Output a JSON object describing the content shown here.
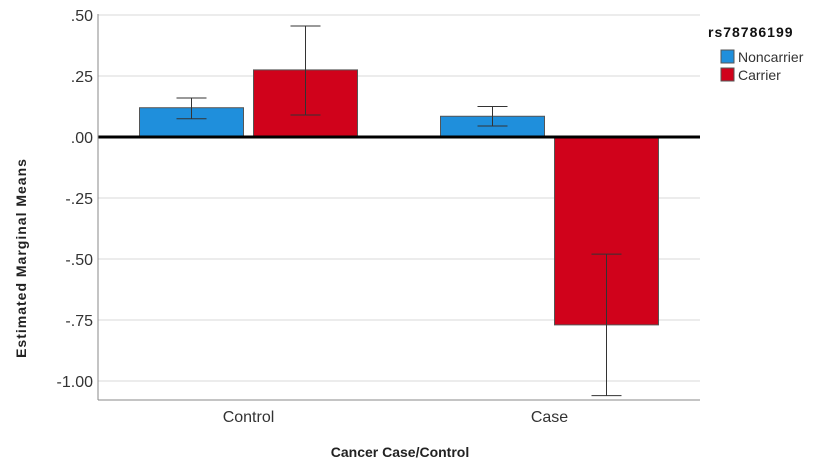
{
  "chart_data": {
    "type": "bar",
    "xlabel": "Cancer Case/Control",
    "ylabel": "Estimated Marginal Means",
    "categories": [
      "Control",
      "Case"
    ],
    "ylim": [
      -1.05,
      0.5
    ],
    "yticks": [
      0.5,
      0.25,
      0.0,
      -0.25,
      -0.5,
      -0.75,
      -1.0
    ],
    "ytick_labels": [
      ".50",
      ".25",
      ".00",
      "-.25",
      "-.50",
      "-.75",
      "-1.00"
    ],
    "grid": "horizontal",
    "legend": {
      "title": "rs78786199",
      "placement": "top-right outside"
    },
    "series": [
      {
        "name": "Noncarrier",
        "color": "#1f8fdc",
        "values": [
          0.12,
          0.085
        ],
        "error_low": [
          0.075,
          0.045
        ],
        "error_high": [
          0.16,
          0.125
        ]
      },
      {
        "name": "Carrier",
        "color": "#d0021b",
        "values": [
          0.275,
          -0.77
        ],
        "error_low": [
          0.09,
          -1.06
        ],
        "error_high": [
          0.455,
          -0.48
        ]
      }
    ]
  }
}
